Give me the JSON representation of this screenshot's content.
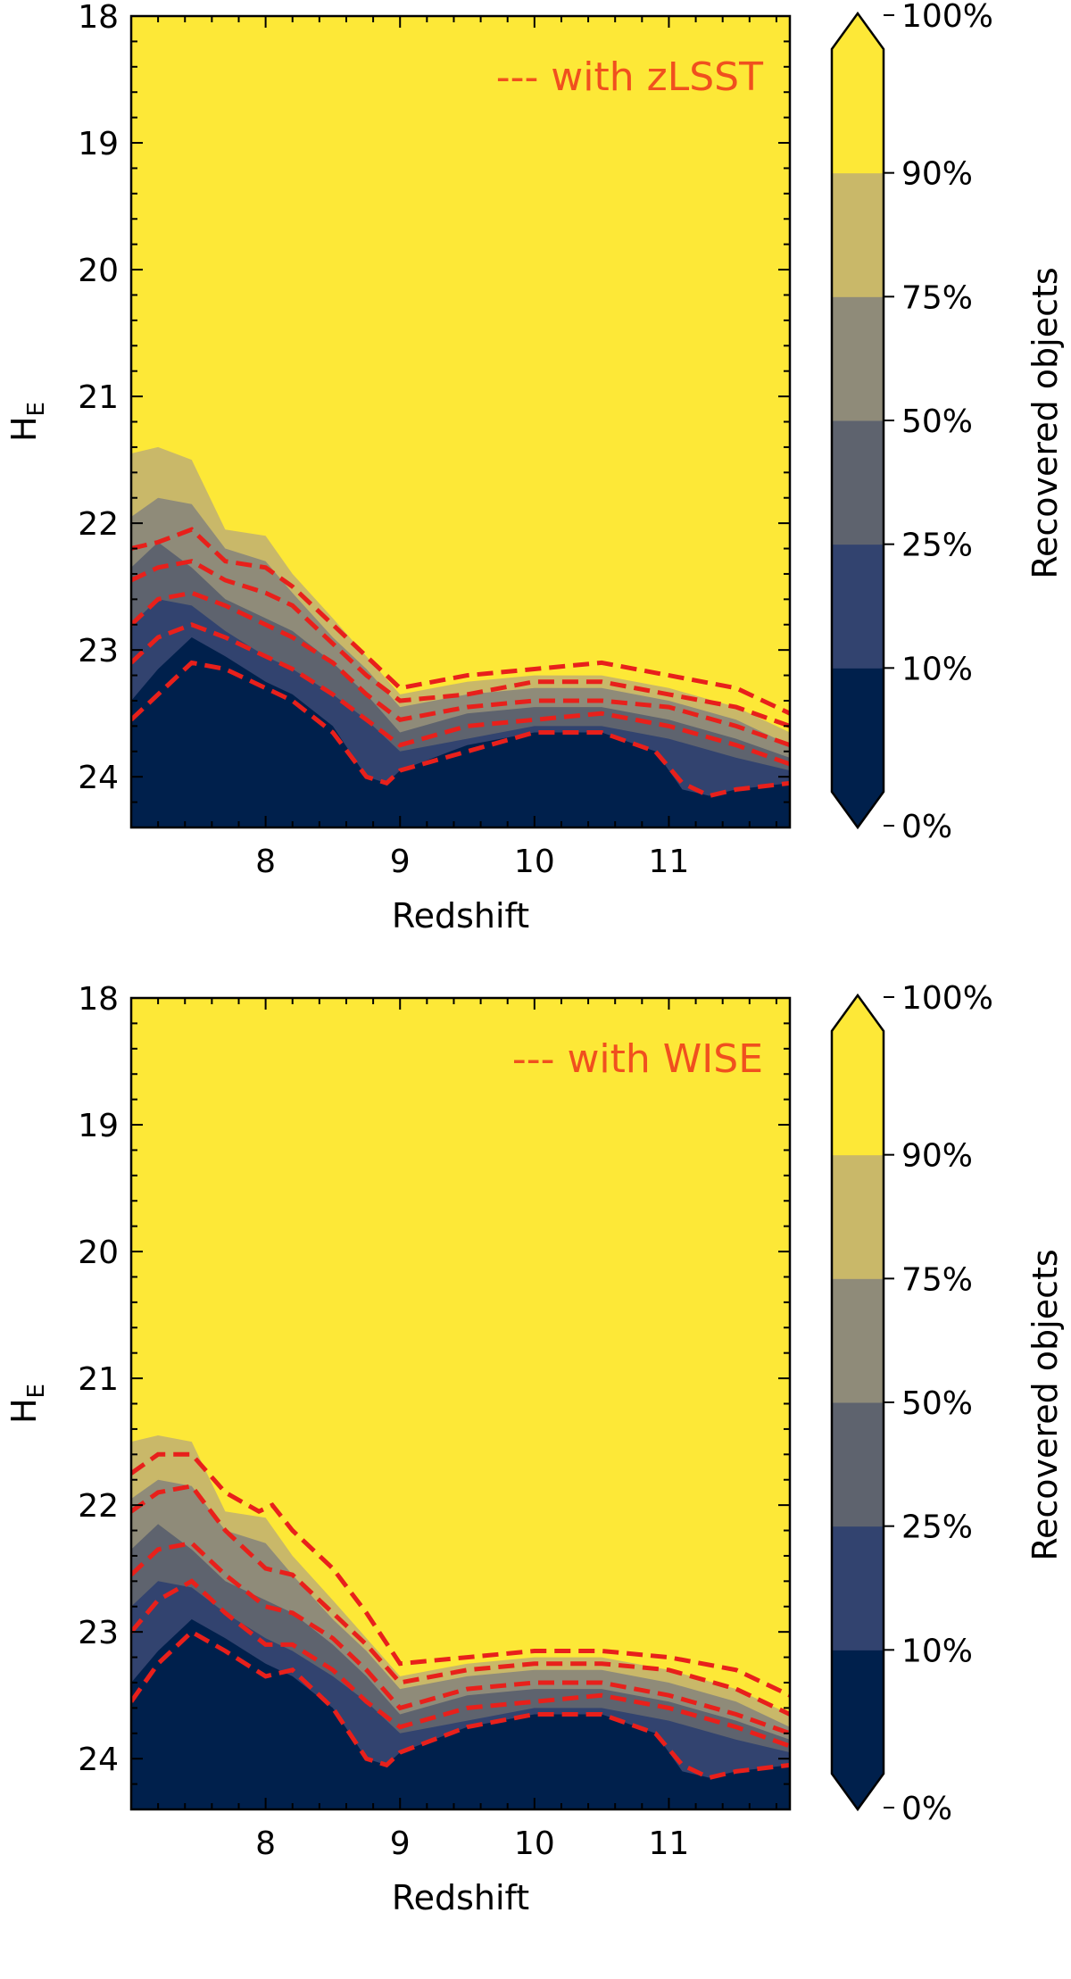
{
  "colors": {
    "0-10": "#00204c",
    "10-25": "#32436f",
    "25-50": "#5e636e",
    "50-75": "#8f8b79",
    "75-90": "#c9b869",
    "90-100": "#fde837",
    "contour": "#e8201b",
    "legend_text": "#f0501e"
  },
  "chart_data": [
    {
      "type": "contour",
      "xlabel": "Redshift",
      "ylabel": "H",
      "ylabel_sub": "E",
      "xlim": [
        7.0,
        11.9
      ],
      "ylim": [
        24.4,
        18.0
      ],
      "y_inverted": true,
      "xticks": [
        8,
        9,
        10,
        11
      ],
      "yticks": [
        18,
        19,
        20,
        21,
        22,
        23,
        24
      ],
      "legend_text": "--- with zLSST",
      "legend_position": "top-right",
      "colorbar": {
        "label": "Recovered objects",
        "tick_labels": [
          "0%",
          "10%",
          "25%",
          "50%",
          "75%",
          "90%",
          "100%"
        ],
        "levels": [
          "0-10",
          "10-25",
          "25-50",
          "50-75",
          "75-90",
          "90-100"
        ]
      },
      "filled_boundaries": [
        {
          "level": "90%",
          "x": [
            7.0,
            7.2,
            7.45,
            7.7,
            8.0,
            8.2,
            8.5,
            8.75,
            9.0,
            9.5,
            10.0,
            10.5,
            11.0,
            11.5,
            11.9
          ],
          "y": [
            21.45,
            21.4,
            21.5,
            22.05,
            22.1,
            22.4,
            22.75,
            23.05,
            23.35,
            23.25,
            23.2,
            23.2,
            23.3,
            23.45,
            23.65
          ]
        },
        {
          "level": "75%",
          "x": [
            7.0,
            7.2,
            7.45,
            7.7,
            8.0,
            8.2,
            8.5,
            8.75,
            9.0,
            9.5,
            10.0,
            10.5,
            11.0,
            11.5,
            11.9
          ],
          "y": [
            21.95,
            21.8,
            21.85,
            22.2,
            22.3,
            22.55,
            22.9,
            23.15,
            23.45,
            23.35,
            23.3,
            23.3,
            23.4,
            23.55,
            23.75
          ]
        },
        {
          "level": "50%",
          "x": [
            7.0,
            7.2,
            7.45,
            7.7,
            8.0,
            8.2,
            8.5,
            8.75,
            9.0,
            9.5,
            10.0,
            10.5,
            11.0,
            11.5,
            11.9
          ],
          "y": [
            22.35,
            22.15,
            22.35,
            22.6,
            22.75,
            22.85,
            23.1,
            23.35,
            23.65,
            23.5,
            23.45,
            23.45,
            23.55,
            23.7,
            23.85
          ]
        },
        {
          "level": "25%",
          "x": [
            7.0,
            7.2,
            7.45,
            7.7,
            8.0,
            8.2,
            8.5,
            8.75,
            9.0,
            9.5,
            10.0,
            10.5,
            11.0,
            11.5,
            11.9
          ],
          "y": [
            22.8,
            22.6,
            22.65,
            22.85,
            23.05,
            23.15,
            23.35,
            23.55,
            23.8,
            23.7,
            23.6,
            23.6,
            23.7,
            23.85,
            23.95
          ]
        },
        {
          "level": "10%",
          "x": [
            7.0,
            7.2,
            7.45,
            7.7,
            8.0,
            8.2,
            8.5,
            8.75,
            8.9,
            9.0,
            9.5,
            10.0,
            10.5,
            10.9,
            11.1,
            11.3,
            11.5,
            11.9
          ],
          "y": [
            23.4,
            23.15,
            22.9,
            23.05,
            23.25,
            23.35,
            23.6,
            24.0,
            24.05,
            23.95,
            23.75,
            23.65,
            23.65,
            23.8,
            24.1,
            24.15,
            24.1,
            24.05
          ]
        }
      ],
      "dashed_contours": [
        {
          "x": [
            7.0,
            7.2,
            7.45,
            7.7,
            8.0,
            8.2,
            8.5,
            8.75,
            9.0,
            9.5,
            10.0,
            10.5,
            11.0,
            11.5,
            11.9
          ],
          "y": [
            22.2,
            22.15,
            22.05,
            22.3,
            22.35,
            22.5,
            22.8,
            23.05,
            23.3,
            23.2,
            23.15,
            23.1,
            23.2,
            23.3,
            23.5
          ]
        },
        {
          "x": [
            7.0,
            7.2,
            7.45,
            7.7,
            8.0,
            8.2,
            8.5,
            8.75,
            9.0,
            9.5,
            10.0,
            10.5,
            11.0,
            11.5,
            11.9
          ],
          "y": [
            22.45,
            22.35,
            22.3,
            22.45,
            22.55,
            22.65,
            22.95,
            23.2,
            23.4,
            23.35,
            23.25,
            23.25,
            23.35,
            23.45,
            23.6
          ]
        },
        {
          "x": [
            7.0,
            7.2,
            7.45,
            7.7,
            8.0,
            8.2,
            8.5,
            8.75,
            9.0,
            9.5,
            10.0,
            10.5,
            11.0,
            11.5,
            11.9
          ],
          "y": [
            22.8,
            22.6,
            22.55,
            22.65,
            22.8,
            22.9,
            23.1,
            23.35,
            23.55,
            23.45,
            23.4,
            23.4,
            23.45,
            23.6,
            23.75
          ]
        },
        {
          "x": [
            7.0,
            7.2,
            7.45,
            7.7,
            8.0,
            8.2,
            8.5,
            8.75,
            9.0,
            9.5,
            10.0,
            10.5,
            11.0,
            11.5,
            11.9
          ],
          "y": [
            23.1,
            22.9,
            22.8,
            22.9,
            23.05,
            23.15,
            23.35,
            23.55,
            23.75,
            23.6,
            23.55,
            23.5,
            23.6,
            23.75,
            23.9
          ]
        },
        {
          "x": [
            7.0,
            7.2,
            7.45,
            7.7,
            8.0,
            8.2,
            8.5,
            8.75,
            8.9,
            9.0,
            9.5,
            10.0,
            10.5,
            10.9,
            11.1,
            11.3,
            11.5,
            11.9
          ],
          "y": [
            23.55,
            23.35,
            23.1,
            23.15,
            23.3,
            23.4,
            23.65,
            24.0,
            24.05,
            23.95,
            23.8,
            23.65,
            23.65,
            23.8,
            24.05,
            24.15,
            24.1,
            24.05
          ]
        }
      ]
    },
    {
      "type": "contour",
      "xlabel": "Redshift",
      "ylabel": "H",
      "ylabel_sub": "E",
      "xlim": [
        7.0,
        11.9
      ],
      "ylim": [
        24.4,
        18.0
      ],
      "y_inverted": true,
      "xticks": [
        8,
        9,
        10,
        11
      ],
      "yticks": [
        18,
        19,
        20,
        21,
        22,
        23,
        24
      ],
      "legend_text": "--- with WISE",
      "legend_position": "top-right",
      "colorbar": {
        "label": "Recovered objects",
        "tick_labels": [
          "0%",
          "10%",
          "25%",
          "50%",
          "75%",
          "90%",
          "100%"
        ],
        "levels": [
          "0-10",
          "10-25",
          "25-50",
          "50-75",
          "75-90",
          "90-100"
        ]
      },
      "filled_boundaries": [
        {
          "level": "90%",
          "x": [
            7.0,
            7.2,
            7.45,
            7.7,
            8.0,
            8.2,
            8.5,
            8.75,
            9.0,
            9.5,
            10.0,
            10.5,
            11.0,
            11.5,
            11.9
          ],
          "y": [
            21.5,
            21.45,
            21.5,
            22.05,
            22.1,
            22.4,
            22.75,
            23.05,
            23.35,
            23.25,
            23.2,
            23.2,
            23.3,
            23.45,
            23.65
          ]
        },
        {
          "level": "75%",
          "x": [
            7.0,
            7.2,
            7.45,
            7.7,
            8.0,
            8.2,
            8.5,
            8.75,
            9.0,
            9.5,
            10.0,
            10.5,
            11.0,
            11.5,
            11.9
          ],
          "y": [
            21.95,
            21.8,
            21.85,
            22.2,
            22.3,
            22.55,
            22.9,
            23.15,
            23.45,
            23.35,
            23.3,
            23.3,
            23.4,
            23.55,
            23.75
          ]
        },
        {
          "level": "50%",
          "x": [
            7.0,
            7.2,
            7.45,
            7.7,
            8.0,
            8.2,
            8.5,
            8.75,
            9.0,
            9.5,
            10.0,
            10.5,
            11.0,
            11.5,
            11.9
          ],
          "y": [
            22.35,
            22.15,
            22.35,
            22.6,
            22.75,
            22.85,
            23.1,
            23.35,
            23.65,
            23.5,
            23.45,
            23.45,
            23.55,
            23.7,
            23.85
          ]
        },
        {
          "level": "25%",
          "x": [
            7.0,
            7.2,
            7.45,
            7.7,
            8.0,
            8.2,
            8.5,
            8.75,
            9.0,
            9.5,
            10.0,
            10.5,
            11.0,
            11.5,
            11.9
          ],
          "y": [
            22.8,
            22.6,
            22.65,
            22.85,
            23.05,
            23.15,
            23.35,
            23.55,
            23.8,
            23.7,
            23.6,
            23.6,
            23.7,
            23.85,
            23.95
          ]
        },
        {
          "level": "10%",
          "x": [
            7.0,
            7.2,
            7.45,
            7.7,
            8.0,
            8.2,
            8.5,
            8.75,
            8.9,
            9.0,
            9.5,
            10.0,
            10.5,
            10.9,
            11.1,
            11.3,
            11.5,
            11.9
          ],
          "y": [
            23.4,
            23.15,
            22.9,
            23.05,
            23.25,
            23.35,
            23.6,
            24.0,
            24.05,
            23.95,
            23.75,
            23.65,
            23.65,
            23.8,
            24.1,
            24.15,
            24.1,
            24.05
          ]
        }
      ],
      "dashed_contours": [
        {
          "x": [
            7.0,
            7.2,
            7.45,
            7.7,
            7.95,
            8.05,
            8.2,
            8.5,
            8.75,
            9.0,
            9.5,
            10.0,
            10.5,
            11.0,
            11.5,
            11.9
          ],
          "y": [
            21.75,
            21.6,
            21.6,
            21.9,
            22.05,
            22.0,
            22.2,
            22.5,
            22.85,
            23.25,
            23.2,
            23.15,
            23.15,
            23.2,
            23.3,
            23.5
          ]
        },
        {
          "x": [
            7.0,
            7.2,
            7.45,
            7.7,
            8.0,
            8.2,
            8.5,
            8.75,
            9.0,
            9.5,
            10.0,
            10.5,
            11.0,
            11.5,
            11.9
          ],
          "y": [
            22.05,
            21.9,
            21.85,
            22.2,
            22.5,
            22.55,
            22.85,
            23.1,
            23.4,
            23.3,
            23.25,
            23.25,
            23.3,
            23.45,
            23.65
          ]
        },
        {
          "x": [
            7.0,
            7.2,
            7.45,
            7.7,
            8.0,
            8.2,
            8.5,
            8.75,
            9.0,
            9.5,
            10.0,
            10.5,
            11.0,
            11.5,
            11.9
          ],
          "y": [
            22.55,
            22.35,
            22.3,
            22.55,
            22.8,
            22.85,
            23.05,
            23.3,
            23.6,
            23.45,
            23.4,
            23.4,
            23.5,
            23.65,
            23.8
          ]
        },
        {
          "x": [
            7.0,
            7.2,
            7.45,
            7.7,
            8.0,
            8.2,
            8.5,
            8.75,
            9.0,
            9.5,
            10.0,
            10.5,
            11.0,
            11.5,
            11.9
          ],
          "y": [
            23.0,
            22.75,
            22.6,
            22.85,
            23.1,
            23.1,
            23.3,
            23.55,
            23.75,
            23.6,
            23.55,
            23.5,
            23.6,
            23.75,
            23.9
          ]
        },
        {
          "x": [
            7.0,
            7.2,
            7.45,
            7.7,
            8.0,
            8.2,
            8.5,
            8.75,
            8.9,
            9.0,
            9.5,
            10.0,
            10.5,
            10.9,
            11.1,
            11.3,
            11.5,
            11.9
          ],
          "y": [
            23.55,
            23.25,
            23.0,
            23.15,
            23.35,
            23.3,
            23.6,
            24.0,
            24.05,
            23.95,
            23.75,
            23.65,
            23.65,
            23.8,
            24.05,
            24.15,
            24.1,
            24.05
          ]
        }
      ]
    }
  ]
}
